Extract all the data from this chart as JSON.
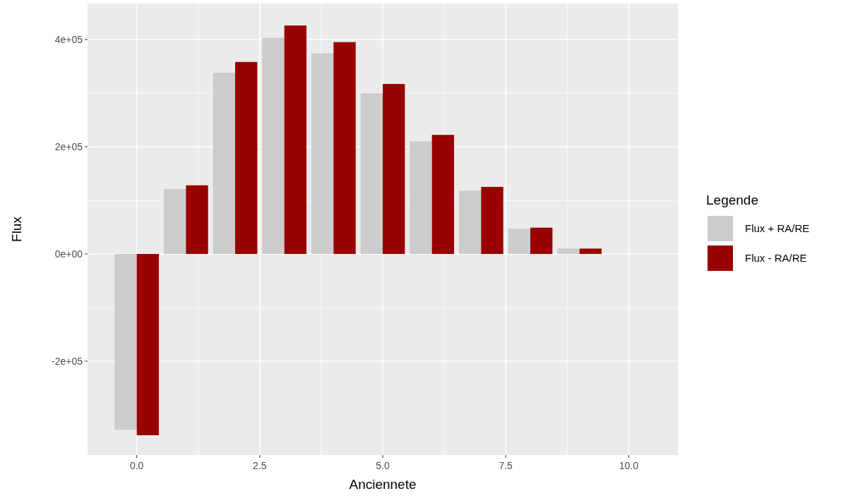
{
  "chart_data": {
    "type": "bar",
    "xlabel": "Anciennete",
    "ylabel": "Flux",
    "legend_title": "Legende",
    "legend": "right",
    "grid": true,
    "x": [
      0,
      1,
      2,
      3,
      4,
      5,
      6,
      7,
      8,
      9
    ],
    "series": [
      {
        "name": "Flux + RA/RE",
        "color": "#cccccc",
        "values": [
          -328000,
          121000,
          338000,
          403000,
          374000,
          300000,
          210000,
          118000,
          47000,
          10000
        ]
      },
      {
        "name": "Flux - RA/RE",
        "color": "#990000",
        "values": [
          -338000,
          128000,
          358000,
          426000,
          395000,
          317000,
          222000,
          125000,
          49000,
          10000
        ]
      }
    ],
    "xlim": [
      -1,
      11
    ],
    "xticks": [
      {
        "value": 0,
        "label": "0.0"
      },
      {
        "value": 2.5,
        "label": "2.5"
      },
      {
        "value": 5,
        "label": "5.0"
      },
      {
        "value": 7.5,
        "label": "7.5"
      },
      {
        "value": 10,
        "label": "10.0"
      }
    ],
    "ylim": [
      -375000,
      467000
    ],
    "yticks": [
      {
        "value": -200000,
        "label": "-2e+05"
      },
      {
        "value": 0,
        "label": "0e+00"
      },
      {
        "value": 200000,
        "label": "2e+05"
      },
      {
        "value": 400000,
        "label": "4e+05"
      }
    ]
  }
}
